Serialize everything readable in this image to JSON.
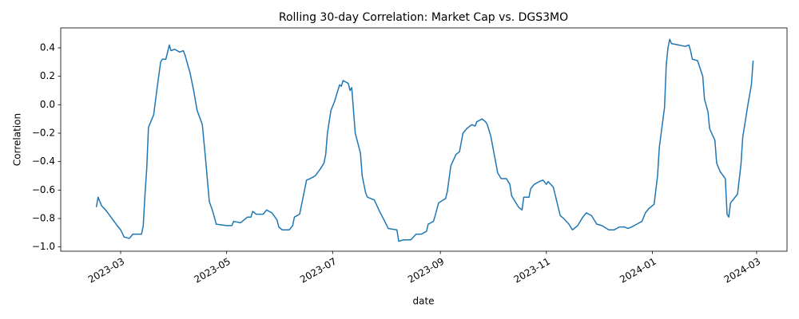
{
  "chart_data": {
    "type": "line",
    "title": "Rolling 30-day Correlation: Market Cap vs. DGS3MO",
    "x_label": "date",
    "y_label": "Correlation",
    "color": "#1f77b4",
    "grid": false,
    "xlim": [
      19382.5,
      19800.5
    ],
    "xticks": [
      {
        "value": 19417,
        "label": "2023-03"
      },
      {
        "value": 19478,
        "label": "2023-05"
      },
      {
        "value": 19539,
        "label": "2023-07"
      },
      {
        "value": 19601,
        "label": "2023-09"
      },
      {
        "value": 19662,
        "label": "2023-11"
      },
      {
        "value": 19723,
        "label": "2024-01"
      },
      {
        "value": 19783,
        "label": "2024-03"
      }
    ],
    "ylim": [
      -1.03,
      0.54
    ],
    "yticks": [
      {
        "value": -1.0,
        "label": "−1.0"
      },
      {
        "value": -0.8,
        "label": "−0.8"
      },
      {
        "value": -0.6,
        "label": "−0.6"
      },
      {
        "value": -0.4,
        "label": "−0.4"
      },
      {
        "value": -0.2,
        "label": "−0.2"
      },
      {
        "value": 0.0,
        "label": "0.0"
      },
      0.2,
      0.4
    ],
    "x": [
      19403,
      19404,
      19406,
      19409,
      19412,
      19415,
      19417,
      19419,
      19422,
      19424,
      19429,
      19430,
      19431,
      19432,
      19433,
      19436,
      19438,
      19440,
      19441,
      19443,
      19445,
      19446,
      19448,
      19451,
      19453,
      19454,
      19457,
      19459,
      19461,
      19464,
      19466,
      19468,
      19470,
      19472,
      19478,
      19481,
      19482,
      19486,
      19490,
      19492,
      19493,
      19495,
      19499,
      19501,
      19504,
      19507,
      19508,
      19510,
      19514,
      19516,
      19517,
      19520,
      19522,
      19524,
      19526,
      19529,
      19532,
      19534,
      19535,
      19536,
      19538,
      19540,
      19543,
      19544,
      19545,
      19548,
      19549,
      19550,
      19552,
      19555,
      19556,
      19558,
      19559,
      19563,
      19566,
      19569,
      19571,
      19576,
      19577,
      19580,
      19584,
      19587,
      19590,
      19593,
      19594,
      19597,
      19598,
      19600,
      19604,
      19605,
      19607,
      19610,
      19612,
      19614,
      19616,
      19619,
      19621,
      19622,
      19625,
      19627,
      19628,
      19630,
      19632,
      19634,
      19636,
      19639,
      19641,
      19642,
      19644,
      19646,
      19648,
      19649,
      19652,
      19653,
      19655,
      19658,
      19660,
      19662,
      19663,
      19666,
      19668,
      19670,
      19672,
      19675,
      19677,
      19680,
      19683,
      19685,
      19688,
      19691,
      19694,
      19698,
      19701,
      19704,
      19707,
      19709,
      19711,
      19714,
      19717,
      19719,
      19721,
      19724,
      19726,
      19727,
      19730,
      19731,
      19732,
      19733,
      19734,
      19738,
      19742,
      19744,
      19745,
      19746,
      19749,
      19752,
      19753,
      19755,
      19756,
      19759,
      19760,
      19762,
      19765,
      19766,
      19767,
      19768,
      19772,
      19774,
      19775,
      19778,
      19780,
      19781
    ],
    "values": [
      -0.72,
      -0.65,
      -0.71,
      -0.75,
      -0.8,
      -0.85,
      -0.88,
      -0.93,
      -0.94,
      -0.91,
      -0.91,
      -0.85,
      -0.63,
      -0.45,
      -0.16,
      -0.07,
      0.12,
      0.3,
      0.32,
      0.32,
      0.42,
      0.38,
      0.39,
      0.37,
      0.38,
      0.35,
      0.22,
      0.1,
      -0.04,
      -0.14,
      -0.4,
      -0.68,
      -0.75,
      -0.84,
      -0.85,
      -0.85,
      -0.82,
      -0.83,
      -0.79,
      -0.79,
      -0.75,
      -0.77,
      -0.77,
      -0.74,
      -0.76,
      -0.81,
      -0.86,
      -0.88,
      -0.88,
      -0.85,
      -0.79,
      -0.77,
      -0.65,
      -0.53,
      -0.52,
      -0.5,
      -0.45,
      -0.41,
      -0.35,
      -0.2,
      -0.04,
      0.02,
      0.14,
      0.13,
      0.17,
      0.15,
      0.1,
      0.12,
      -0.2,
      -0.34,
      -0.5,
      -0.62,
      -0.65,
      -0.67,
      -0.75,
      -0.82,
      -0.87,
      -0.88,
      -0.96,
      -0.95,
      -0.95,
      -0.91,
      -0.91,
      -0.89,
      -0.84,
      -0.82,
      -0.78,
      -0.69,
      -0.66,
      -0.61,
      -0.43,
      -0.35,
      -0.33,
      -0.2,
      -0.17,
      -0.14,
      -0.15,
      -0.12,
      -0.1,
      -0.12,
      -0.14,
      -0.22,
      -0.35,
      -0.48,
      -0.52,
      -0.52,
      -0.56,
      -0.64,
      -0.68,
      -0.72,
      -0.74,
      -0.65,
      -0.65,
      -0.59,
      -0.56,
      -0.54,
      -0.53,
      -0.56,
      -0.54,
      -0.58,
      -0.68,
      -0.78,
      -0.8,
      -0.84,
      -0.88,
      -0.85,
      -0.79,
      -0.76,
      -0.78,
      -0.84,
      -0.85,
      -0.88,
      -0.88,
      -0.86,
      -0.86,
      -0.87,
      -0.86,
      -0.84,
      -0.82,
      -0.76,
      -0.73,
      -0.7,
      -0.5,
      -0.3,
      -0.02,
      0.28,
      0.4,
      0.46,
      0.43,
      0.42,
      0.41,
      0.42,
      0.38,
      0.32,
      0.31,
      0.2,
      0.04,
      -0.05,
      -0.17,
      -0.25,
      -0.41,
      -0.47,
      -0.52,
      -0.77,
      -0.79,
      -0.69,
      -0.63,
      -0.42,
      -0.23,
      0.0,
      0.14,
      0.31
    ]
  }
}
